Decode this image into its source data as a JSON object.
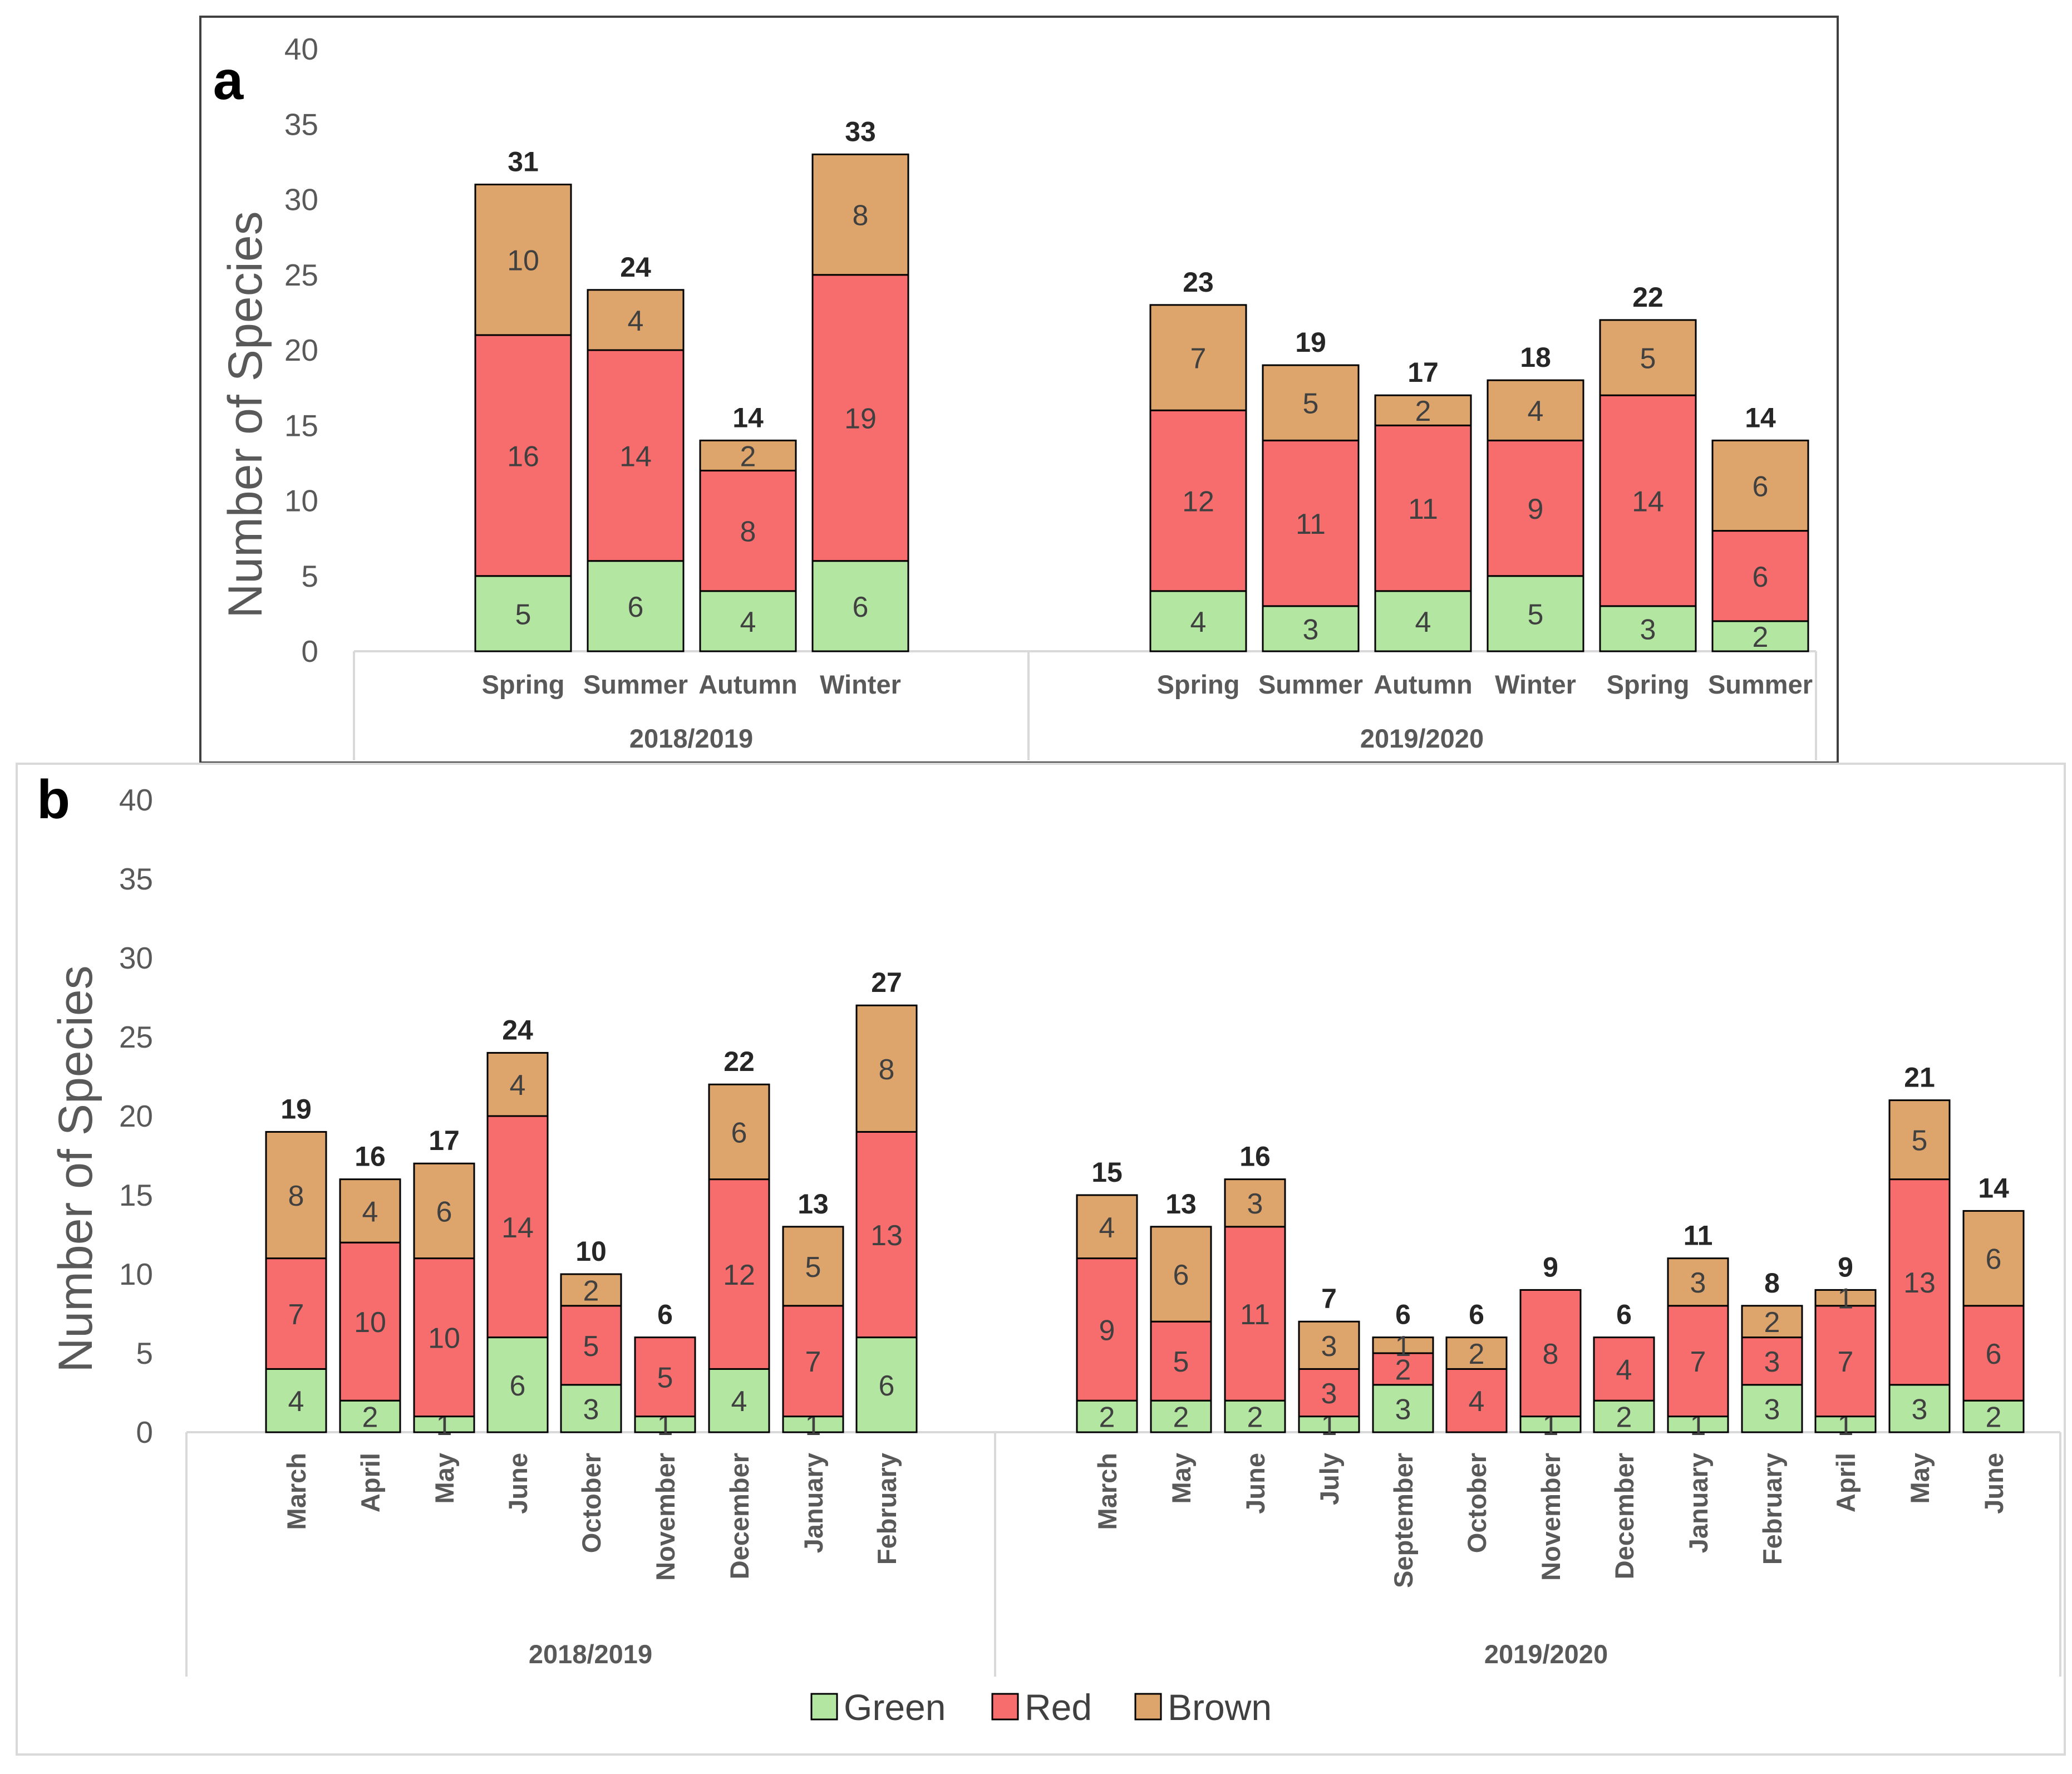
{
  "colors": {
    "Green": "#b3e6a1",
    "Red": "#f76d6d",
    "Brown": "#dda56b"
  },
  "legend": [
    "Green",
    "Red",
    "Brown"
  ],
  "chart_data": [
    {
      "type": "bar",
      "stacked": true,
      "panel": "a",
      "ylabel": "Number of Species",
      "ylim": [
        0,
        40
      ],
      "yticks": [
        0,
        5,
        10,
        15,
        20,
        25,
        30,
        35,
        40
      ],
      "groups": [
        {
          "label": "2018/2019",
          "categories": [
            "Spring",
            "Summer",
            "Autumn",
            "Winter"
          ]
        },
        {
          "label": "2019/2020",
          "categories": [
            "Spring",
            "Summer",
            "Autumn",
            "Winter",
            "Spring",
            "Summer"
          ]
        }
      ],
      "series": [
        {
          "name": "Green",
          "values": [
            5,
            6,
            4,
            6,
            4,
            3,
            4,
            5,
            3,
            2
          ]
        },
        {
          "name": "Red",
          "values": [
            16,
            14,
            8,
            19,
            12,
            11,
            11,
            9,
            14,
            6
          ]
        },
        {
          "name": "Brown",
          "values": [
            10,
            4,
            2,
            8,
            7,
            5,
            2,
            4,
            5,
            6
          ]
        }
      ],
      "totals": [
        31,
        24,
        14,
        33,
        23,
        19,
        17,
        18,
        22,
        14
      ]
    },
    {
      "type": "bar",
      "stacked": true,
      "panel": "b",
      "ylabel": "Number of Species",
      "ylim": [
        0,
        40
      ],
      "yticks": [
        0,
        5,
        10,
        15,
        20,
        25,
        30,
        35,
        40
      ],
      "groups": [
        {
          "label": "2018/2019",
          "categories": [
            "March",
            "April",
            "May",
            "June",
            "October",
            "November",
            "December",
            "January",
            "February"
          ]
        },
        {
          "label": "2019/2020",
          "categories": [
            "March",
            "May",
            "June",
            "July",
            "September",
            "October",
            "November",
            "December",
            "January",
            "February",
            "April",
            "May",
            "June"
          ]
        }
      ],
      "series": [
        {
          "name": "Green",
          "values": [
            4,
            2,
            1,
            6,
            3,
            1,
            4,
            1,
            6,
            2,
            2,
            2,
            1,
            3,
            0,
            1,
            2,
            1,
            3,
            1,
            3,
            2
          ]
        },
        {
          "name": "Red",
          "values": [
            7,
            10,
            10,
            14,
            5,
            5,
            12,
            7,
            13,
            9,
            5,
            11,
            3,
            2,
            4,
            8,
            4,
            7,
            3,
            7,
            13,
            6
          ]
        },
        {
          "name": "Brown",
          "values": [
            8,
            4,
            6,
            4,
            2,
            0,
            6,
            5,
            8,
            4,
            6,
            3,
            3,
            1,
            2,
            0,
            0,
            3,
            2,
            1,
            5,
            6
          ]
        }
      ],
      "totals": [
        19,
        16,
        17,
        24,
        10,
        6,
        22,
        13,
        27,
        15,
        13,
        16,
        7,
        6,
        6,
        9,
        6,
        11,
        8,
        9,
        21,
        14
      ]
    }
  ]
}
